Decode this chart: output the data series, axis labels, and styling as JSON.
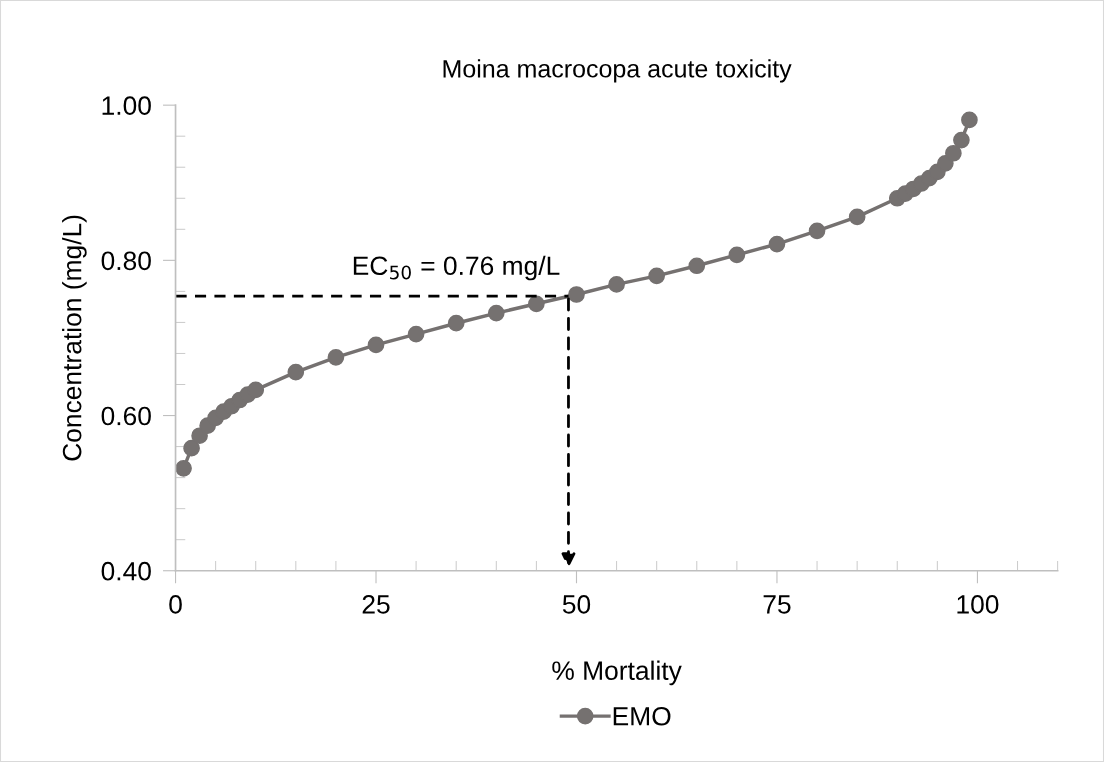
{
  "chart_data": {
    "type": "line",
    "title": "Moina macrocopa acute toxicity",
    "xlabel": "% Mortality",
    "ylabel": "Concentration (mg/L)",
    "x": [
      1,
      2,
      3,
      4,
      5,
      6,
      7,
      8,
      9,
      10,
      15,
      20,
      25,
      30,
      35,
      40,
      45,
      50,
      55,
      60,
      65,
      70,
      75,
      80,
      85,
      90,
      91,
      92,
      93,
      94,
      95,
      96,
      97,
      98,
      99
    ],
    "series": [
      {
        "name": "EMO",
        "color": "#757170",
        "values": [
          0.532,
          0.558,
          0.574,
          0.587,
          0.597,
          0.605,
          0.612,
          0.62,
          0.627,
          0.633,
          0.656,
          0.675,
          0.691,
          0.705,
          0.719,
          0.732,
          0.744,
          0.756,
          0.769,
          0.78,
          0.793,
          0.807,
          0.821,
          0.838,
          0.856,
          0.88,
          0.886,
          0.892,
          0.899,
          0.906,
          0.914,
          0.925,
          0.938,
          0.955,
          0.981
        ]
      }
    ],
    "xlim": [
      0,
      110
    ],
    "xticks": [
      0,
      25,
      50,
      75,
      100
    ],
    "ylim": [
      0.4,
      1.0
    ],
    "yticks": [
      {
        "value": 0.4,
        "label": "0.40"
      },
      {
        "value": 0.6,
        "label": "0.60"
      },
      {
        "value": 0.8,
        "label": "0.80"
      },
      {
        "value": 1.0,
        "label": "1.00"
      }
    ],
    "annotations": [
      {
        "text": "EC$_{50}$ = 0.76 mg/L",
        "x": 49,
        "y": 0.754
      }
    ],
    "marker": "circle",
    "line_style": "solid",
    "grid": false,
    "legend": "bottom"
  }
}
